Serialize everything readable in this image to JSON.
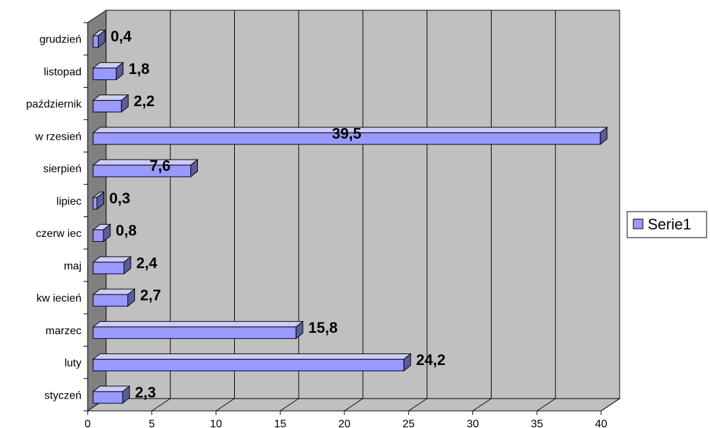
{
  "chart_data": {
    "type": "bar",
    "orientation": "horizontal",
    "categories": [
      "styczeń",
      "luty",
      "marzec",
      "kw iecień",
      "maj",
      "czerw iec",
      "lipiec",
      "sierpień",
      "w rzesień",
      "październik",
      "listopad",
      "grudzień"
    ],
    "series": [
      {
        "name": "Serie1",
        "values": [
          2.3,
          24.2,
          15.8,
          2.7,
          2.4,
          0.8,
          0.3,
          7.6,
          39.5,
          2.2,
          1.8,
          0.4
        ],
        "labels": [
          "2,3",
          "24,2",
          "15,8",
          "2,7",
          "2,4",
          "0,8",
          "0,3",
          "7,6",
          "39,5",
          "2,2",
          "1,8",
          "0,4"
        ],
        "color": "#9999ff"
      }
    ],
    "x_ticks": [
      "0",
      "5",
      "10",
      "15",
      "20",
      "25",
      "30",
      "35",
      "40"
    ],
    "xlim": [
      0,
      40
    ],
    "grid": true,
    "legend_position": "right",
    "style": "3d",
    "colors": {
      "wall": "#c0c0c0",
      "side_wall": "#808080",
      "bar_front": "#9999ff",
      "bar_top": "#ccccff",
      "bar_side": "#5c5c99"
    }
  }
}
